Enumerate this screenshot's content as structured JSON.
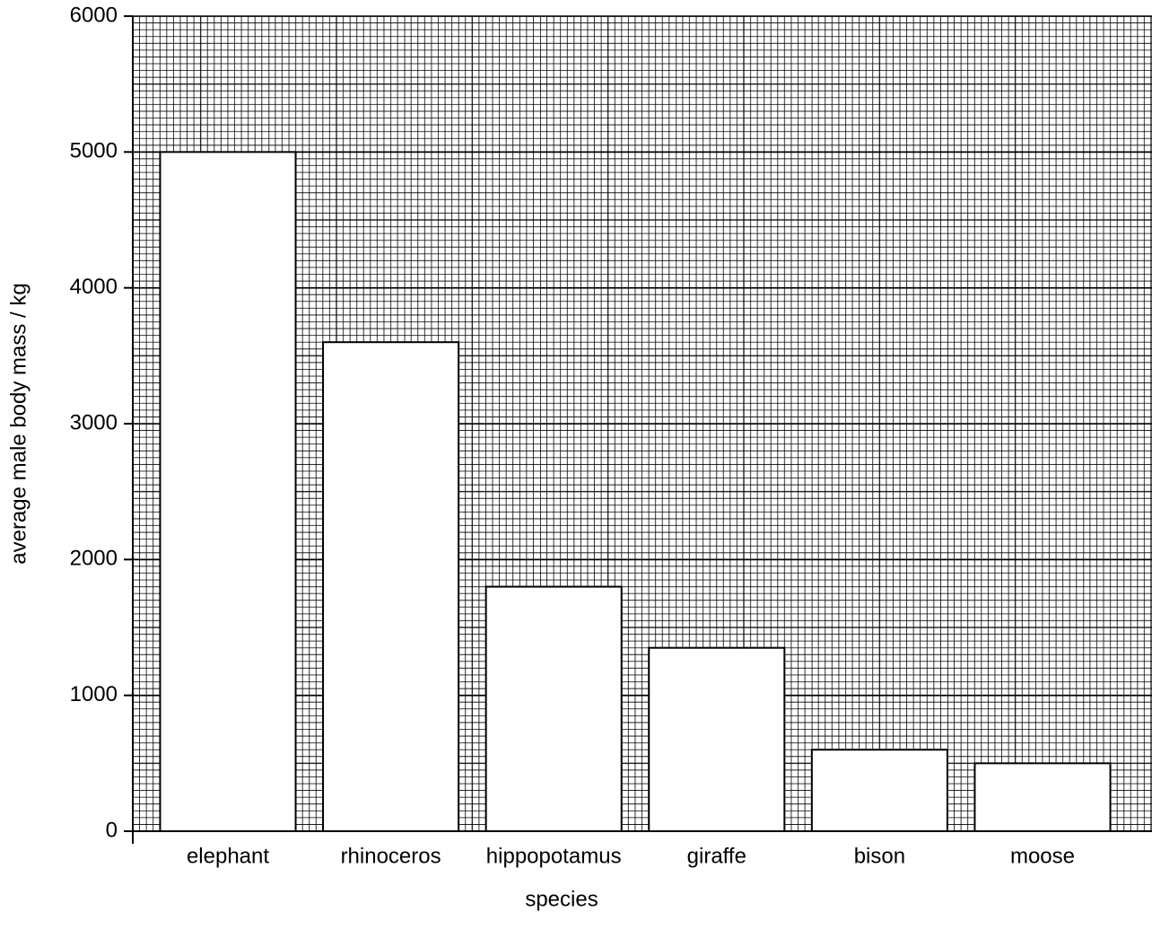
{
  "chart_data": {
    "type": "bar",
    "x_label": "species",
    "y_label": "average male body mass / kg",
    "categories": [
      "elephant",
      "rhinoceros",
      "hippopotamus",
      "giraffe",
      "bison",
      "moose"
    ],
    "values": [
      5000,
      3600,
      1800,
      1350,
      600,
      500
    ],
    "color": "#ffffff",
    "ylim": [
      0,
      6000
    ],
    "yticks": [
      0,
      1000,
      2000,
      3000,
      4000,
      5000,
      6000
    ],
    "grid": true
  }
}
